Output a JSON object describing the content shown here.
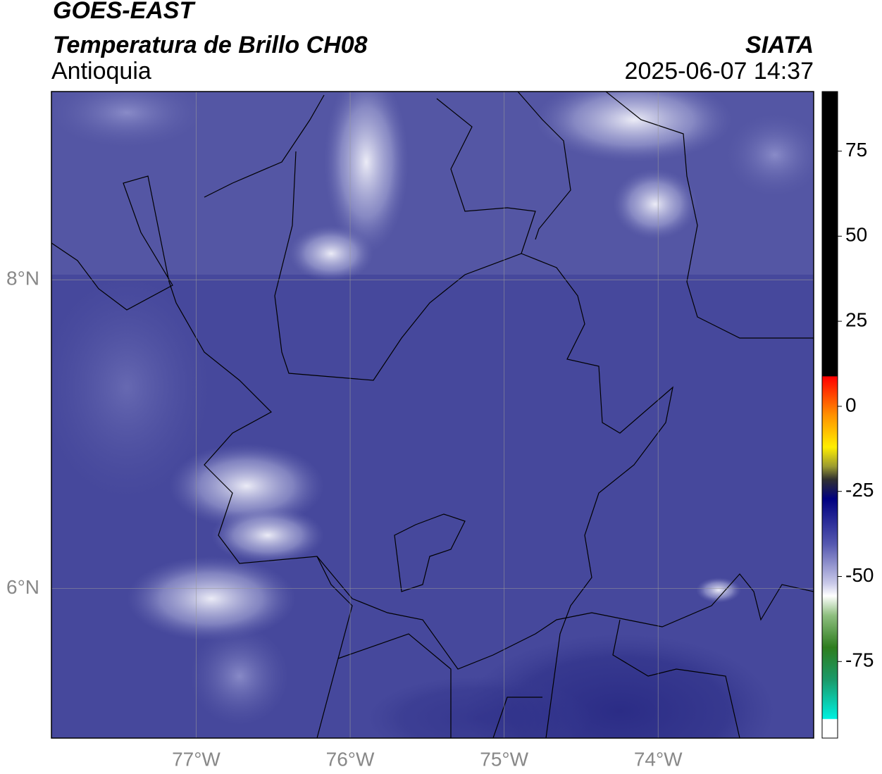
{
  "header": {
    "satellite": "GOES-EAST",
    "product": "Temperatura de Brillo CH08",
    "region": "Antioquia",
    "source": "SIATA",
    "timestamp": "2025-06-07 14:37"
  },
  "map": {
    "xlim": [
      -77.94,
      -72.99
    ],
    "ylim": [
      5.03,
      9.22
    ],
    "xticks": [
      {
        "value": -77,
        "label": "77°W"
      },
      {
        "value": -76,
        "label": "76°W"
      },
      {
        "value": -75,
        "label": "75°W"
      },
      {
        "value": -74,
        "label": "74°W"
      }
    ],
    "yticks": [
      {
        "value": 8,
        "label": "8°N"
      },
      {
        "value": 6,
        "label": "6°N"
      }
    ],
    "grid": true
  },
  "colorbar": {
    "range": [
      -97.5,
      92.5
    ],
    "ticks": [
      75,
      50,
      25,
      0,
      -25,
      -50,
      -75
    ]
  }
}
